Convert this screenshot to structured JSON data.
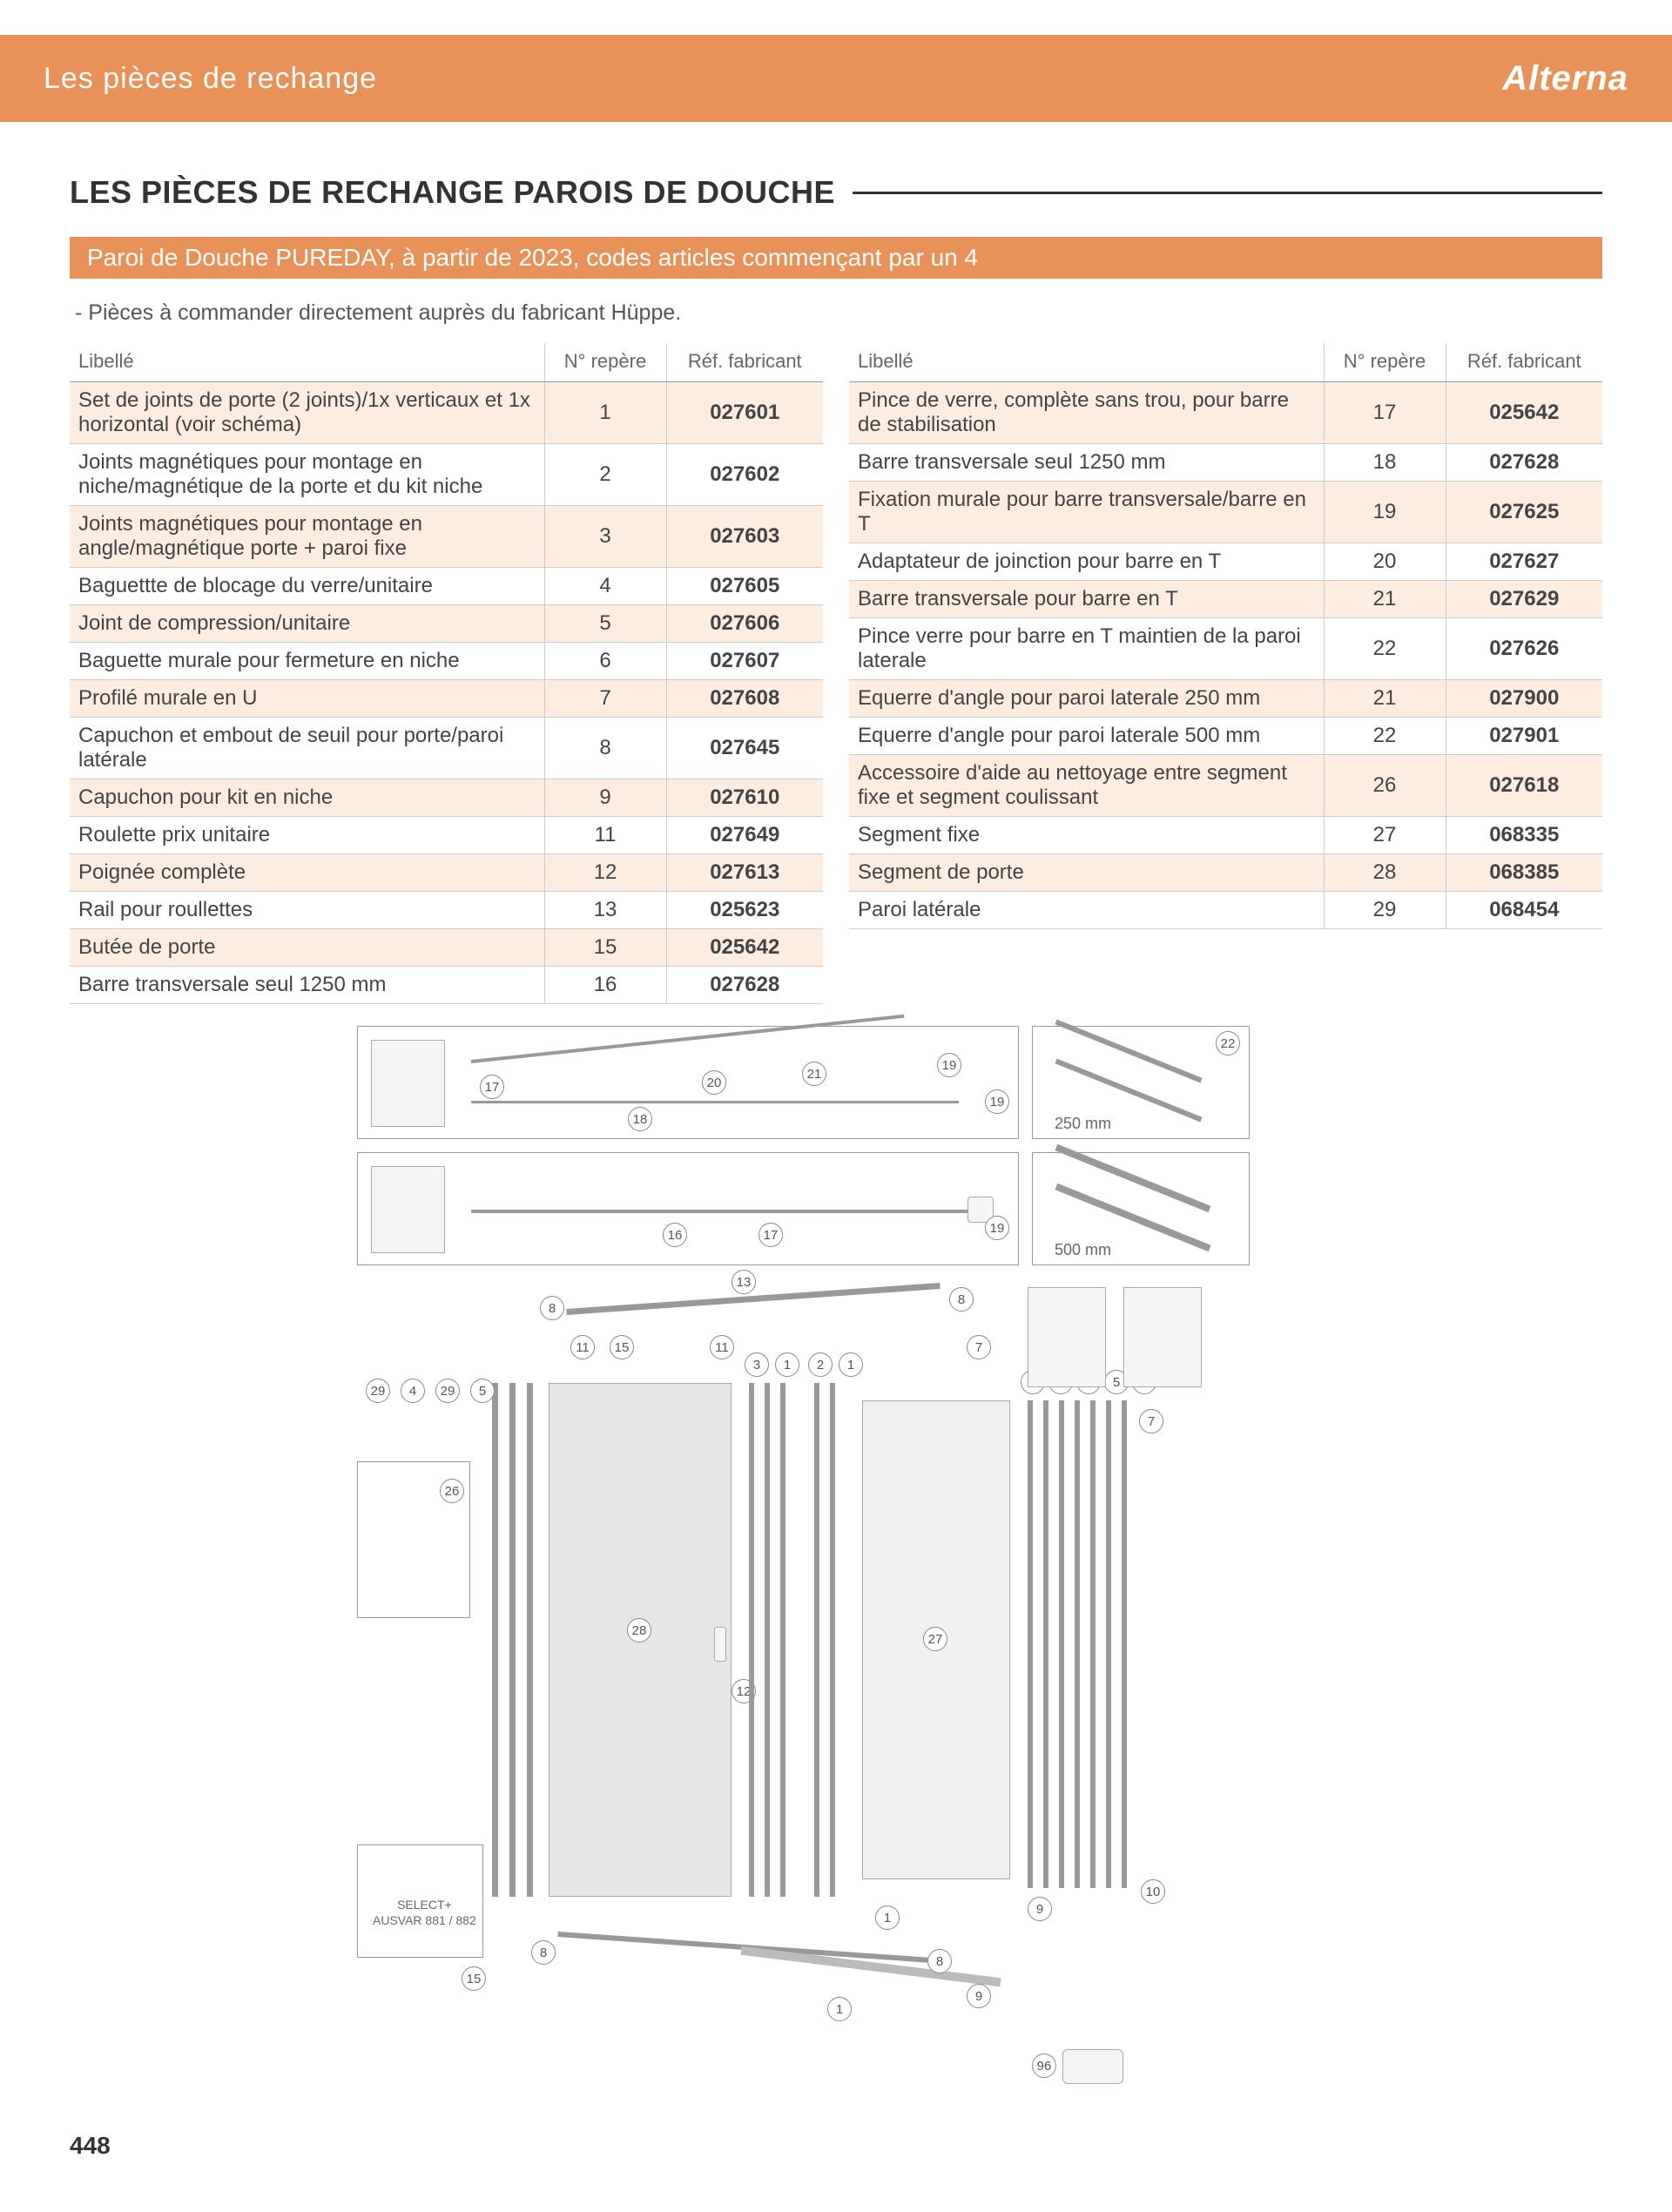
{
  "header": {
    "title": "Les pièces de rechange",
    "brand": "Alterna"
  },
  "section": {
    "title": "LES PIÈCES DE RECHANGE PAROIS DE DOUCHE",
    "subtitle": "Paroi de Douche PUREDAY, à partir de 2023, codes articles commençant par un 4",
    "note": "- Pièces à commander directement auprès du fabricant Hüppe."
  },
  "columns": {
    "lib": "Libellé",
    "rep": "N° repère",
    "ref": "Réf. fabricant"
  },
  "table_left": [
    {
      "lib": "Set de joints de porte (2 joints)/1x verticaux et 1x horizontal (voir schéma)",
      "rep": "1",
      "ref": "027601"
    },
    {
      "lib": "Joints magnétiques pour montage en niche/magnétique de la porte et du kit niche",
      "rep": "2",
      "ref": "027602"
    },
    {
      "lib": "Joints magnétiques pour montage en angle/magnétique porte + paroi fixe",
      "rep": "3",
      "ref": "027603"
    },
    {
      "lib": "Baguettte de blocage du verre/unitaire",
      "rep": "4",
      "ref": "027605"
    },
    {
      "lib": "Joint de compression/unitaire",
      "rep": "5",
      "ref": "027606"
    },
    {
      "lib": "Baguette murale pour fermeture en niche",
      "rep": "6",
      "ref": "027607"
    },
    {
      "lib": "Profilé murale en U",
      "rep": "7",
      "ref": "027608"
    },
    {
      "lib": "Capuchon et embout de seuil pour porte/paroi latérale",
      "rep": "8",
      "ref": "027645"
    },
    {
      "lib": "Capuchon pour kit en niche",
      "rep": "9",
      "ref": "027610"
    },
    {
      "lib": "Roulette prix unitaire",
      "rep": "11",
      "ref": "027649"
    },
    {
      "lib": "Poignée complète",
      "rep": "12",
      "ref": "027613"
    },
    {
      "lib": "Rail pour roullettes",
      "rep": "13",
      "ref": "025623"
    },
    {
      "lib": "Butée de porte",
      "rep": "15",
      "ref": "025642"
    },
    {
      "lib": "Barre transversale seul 1250 mm",
      "rep": "16",
      "ref": "027628"
    }
  ],
  "table_right": [
    {
      "lib": "Pince de verre, complète sans trou, pour barre de stabilisation",
      "rep": "17",
      "ref": "025642"
    },
    {
      "lib": "Barre transversale seul 1250 mm",
      "rep": "18",
      "ref": "027628"
    },
    {
      "lib": "Fixation murale pour barre transversale/barre en T",
      "rep": "19",
      "ref": "027625"
    },
    {
      "lib": "Adaptateur de joinction pour barre en T",
      "rep": "20",
      "ref": "027627"
    },
    {
      "lib": "Barre transversale pour barre en T",
      "rep": "21",
      "ref": "027629"
    },
    {
      "lib": "Pince verre pour barre en T maintien de la paroi laterale",
      "rep": "22",
      "ref": "027626"
    },
    {
      "lib": "Equerre d'angle pour paroi laterale 250 mm",
      "rep": "21",
      "ref": "027900"
    },
    {
      "lib": "Equerre d'angle pour paroi laterale 500 mm",
      "rep": "22",
      "ref": "027901"
    },
    {
      "lib": "Accessoire d'aide au nettoyage entre segment fixe et segment coulissant",
      "rep": "26",
      "ref": "027618"
    },
    {
      "lib": "Segment fixe",
      "rep": "27",
      "ref": "068335"
    },
    {
      "lib": "Segment de porte",
      "rep": "28",
      "ref": "068385"
    },
    {
      "lib": "Paroi latérale",
      "rep": "29",
      "ref": "068454"
    }
  ],
  "diagram": {
    "labels": {
      "l250": "250 mm",
      "l500": "500 mm",
      "select": "SELECT+\nAUSVAR 881 / 882"
    },
    "callouts_top1": [
      "17",
      "18",
      "19",
      "20",
      "21",
      "22"
    ],
    "callouts_top2": [
      "16",
      "17",
      "19"
    ],
    "callouts_main": [
      "1",
      "2",
      "3",
      "4",
      "5",
      "6",
      "7",
      "8",
      "9",
      "10",
      "11",
      "12",
      "13",
      "15",
      "25",
      "26",
      "27",
      "28",
      "29",
      "96"
    ]
  },
  "page_number": "448",
  "colors": {
    "accent": "#e8925a",
    "row_alt": "#fdece0",
    "text": "#333333",
    "border": "#cccccc"
  }
}
